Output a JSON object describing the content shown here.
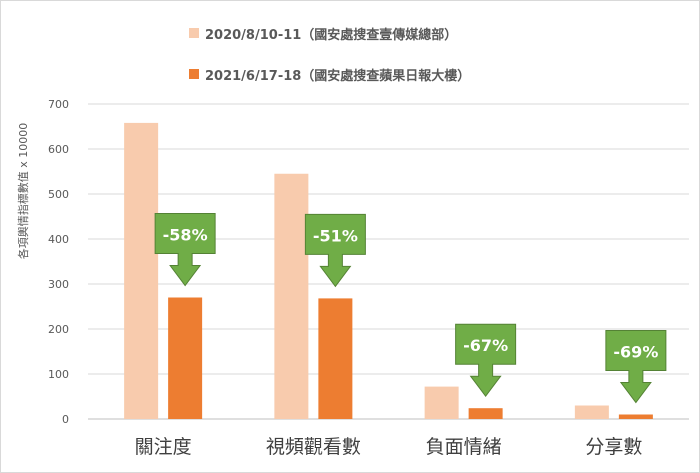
{
  "chart_data": {
    "type": "bar",
    "categories": [
      "關注度",
      "視頻觀看數",
      "負面情緒",
      "分享數"
    ],
    "series": [
      {
        "name": "2020/8/10-11（國安處搜查壹傳媒總部）",
        "color": "#f8cbad",
        "values": [
          658,
          545,
          72,
          30
        ]
      },
      {
        "name": "2021/6/17-18（國安處搜查蘋果日報大樓）",
        "color": "#ed7d31",
        "values": [
          270,
          268,
          24,
          10
        ]
      }
    ],
    "annotations": [
      "-58%",
      "-51%",
      "-67%",
      "-69%"
    ],
    "annotation_color": "#70ad47",
    "ylabel": "各項輿情指標數值 x 10000",
    "ylim": [
      0,
      700
    ],
    "yticks": [
      0,
      100,
      200,
      300,
      400,
      500,
      600,
      700
    ],
    "grid": true,
    "legend_position": "top"
  }
}
